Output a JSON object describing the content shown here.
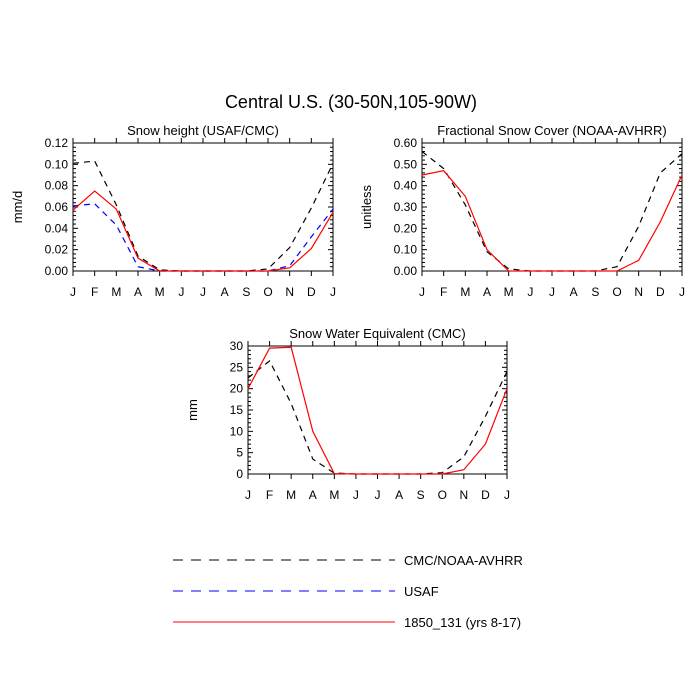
{
  "figure": {
    "title": "Central U.S. (30-50N,105-90W)"
  },
  "colors": {
    "obs": "#000000",
    "usaf": "#0000ff",
    "model": "#ff0000"
  },
  "legend": {
    "items": [
      {
        "label": "CMC/NOAA-AVHRR",
        "color": "#000000",
        "dash": "dashed"
      },
      {
        "label": "USAF",
        "color": "#0000ff",
        "dash": "dashed"
      },
      {
        "label": "1850_131 (yrs 8-17)",
        "color": "#ff0000",
        "dash": "solid"
      }
    ]
  },
  "chart_data": [
    {
      "type": "line",
      "title": "Snow height (USAF/CMC)",
      "xlabel": "",
      "ylabel": "mm/d",
      "categories": [
        "J",
        "F",
        "M",
        "A",
        "M",
        "J",
        "J",
        "A",
        "S",
        "O",
        "N",
        "D",
        "J"
      ],
      "ylim": [
        0,
        0.12
      ],
      "yticks": [
        "0.00",
        "0.02",
        "0.04",
        "0.06",
        "0.08",
        "0.10",
        "0.12"
      ],
      "series": [
        {
          "name": "CMC/NOAA-AVHRR",
          "values": [
            0.101,
            0.103,
            0.062,
            0.014,
            0.001,
            0.0,
            0.0,
            0.0,
            0.0,
            0.002,
            0.022,
            0.059,
            0.101
          ]
        },
        {
          "name": "USAF",
          "values": [
            0.061,
            0.063,
            0.043,
            0.004,
            0.0,
            0.0,
            0.0,
            0.0,
            0.0,
            0.0,
            0.005,
            0.032,
            0.058
          ]
        },
        {
          "name": "1850_131 (yrs 8-17)",
          "values": [
            0.057,
            0.075,
            0.058,
            0.012,
            0.0,
            0.0,
            0.0,
            0.0,
            0.0,
            0.0,
            0.003,
            0.021,
            0.055
          ]
        }
      ]
    },
    {
      "type": "line",
      "title": "Fractional Snow Cover (NOAA-AVHRR)",
      "xlabel": "",
      "ylabel": "unitless",
      "categories": [
        "J",
        "F",
        "M",
        "A",
        "M",
        "J",
        "J",
        "A",
        "S",
        "O",
        "N",
        "D",
        "J"
      ],
      "ylim": [
        0,
        0.6
      ],
      "yticks": [
        "0.00",
        "0.10",
        "0.20",
        "0.30",
        "0.40",
        "0.50",
        "0.60"
      ],
      "series": [
        {
          "name": "CMC/NOAA-AVHRR",
          "values": [
            0.56,
            0.48,
            0.31,
            0.09,
            0.01,
            0.0,
            0.0,
            0.0,
            0.0,
            0.02,
            0.21,
            0.46,
            0.55
          ]
        },
        {
          "name": "1850_131 (yrs 8-17)",
          "values": [
            0.45,
            0.47,
            0.35,
            0.1,
            0.0,
            0.0,
            0.0,
            0.0,
            0.0,
            0.0,
            0.05,
            0.23,
            0.45
          ]
        }
      ]
    },
    {
      "type": "line",
      "title": "Snow Water Equivalent (CMC)",
      "xlabel": "",
      "ylabel": "mm",
      "categories": [
        "J",
        "F",
        "M",
        "A",
        "M",
        "J",
        "J",
        "A",
        "S",
        "O",
        "N",
        "D",
        "J"
      ],
      "ylim": [
        0,
        30
      ],
      "yticks": [
        "0",
        "5",
        "10",
        "15",
        "20",
        "25",
        "30"
      ],
      "series": [
        {
          "name": "CMC/NOAA-AVHRR",
          "values": [
            22.5,
            26.5,
            16.5,
            3.5,
            0.2,
            0.0,
            0.0,
            0.0,
            0.0,
            0.3,
            4.0,
            13.5,
            24.0
          ]
        },
        {
          "name": "1850_131 (yrs 8-17)",
          "values": [
            20.0,
            29.5,
            29.7,
            10.0,
            0.1,
            0.0,
            0.0,
            0.0,
            0.0,
            0.0,
            1.0,
            7.0,
            20.0
          ]
        }
      ]
    }
  ]
}
